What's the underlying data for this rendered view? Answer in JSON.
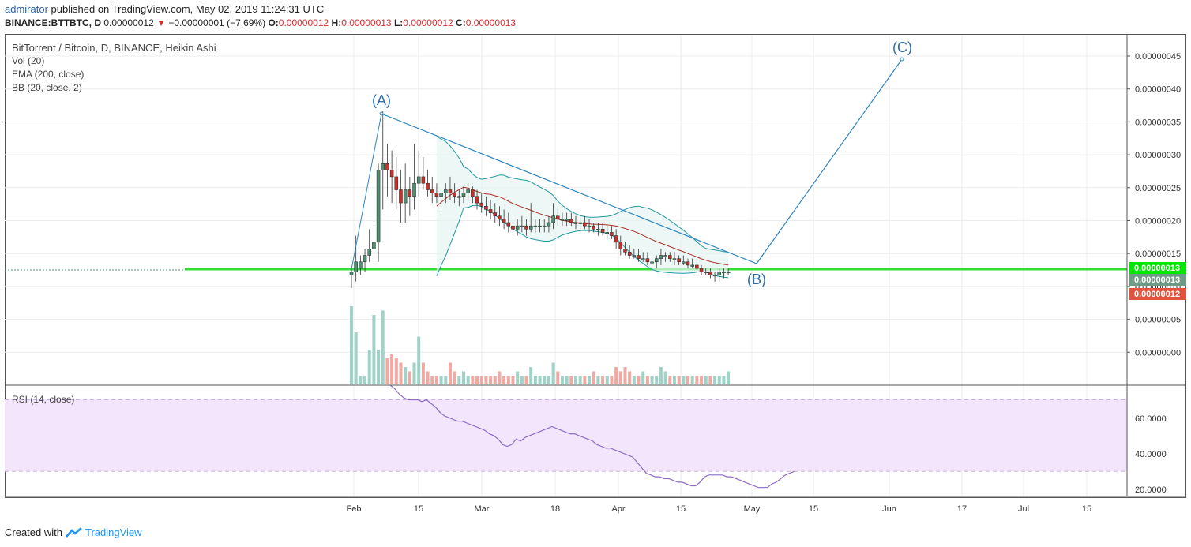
{
  "header": {
    "user": "admirator",
    "published": "published on TradingView.com, May 02, 2019 11:24:31 UTC",
    "symbol": "BINANCE:BTTBTC, D",
    "last": "0.00000012",
    "change": "−0.00000001 (−7.69%)",
    "o_label": "O:",
    "o": "0.00000012",
    "h_label": "H:",
    "h": "0.00000013",
    "l_label": "L:",
    "l": "0.00000012",
    "c_label": "C:",
    "c": "0.00000013"
  },
  "legend": {
    "title": "BitTorrent / Bitcoin, D, BINANCE, Heikin Ashi",
    "vol": "Vol (20)",
    "ema": "EMA (200, close)",
    "bb": "BB (20, close, 2)",
    "rsi": "RSI (14, close)"
  },
  "wave_labels": {
    "a": "(A)",
    "b": "(B)",
    "c": "(C)"
  },
  "price_tags": [
    {
      "text": "0.00000013",
      "color": "#00e600"
    },
    {
      "text": "0.00000013",
      "color": "#6f9a86"
    },
    {
      "text": "0.00000012",
      "color": "#e0533e"
    }
  ],
  "footer": {
    "created": "Created with",
    "brand": "TradingView"
  },
  "colors": {
    "up": "#4f8f72",
    "down": "#c9302c",
    "bb": "#1f9aa0",
    "ema": "#a93226",
    "wave": "#2e86c1",
    "support": "#33dd33",
    "rsi_line": "#8e6bc6",
    "rsi_band": "#f3e6fc"
  },
  "chart_data": {
    "type": "candlestick",
    "x_ticks": [
      "Feb",
      "15",
      "Mar",
      "18",
      "Apr",
      "15",
      "May",
      "15",
      "Jun",
      "17",
      "Jul",
      "15"
    ],
    "y_ticks": [
      "0.00000045",
      "0.00000040",
      "0.00000035",
      "0.00000030",
      "0.00000025",
      "0.00000020",
      "0.00000015",
      "0.00000010",
      "0.00000005",
      "0.00000000"
    ],
    "support_level": 1.25e-07,
    "ohlc": [
      [
        1.2e-07,
        1.3e-07,
        1e-07,
        1.25e-07,
        9.0
      ],
      [
        1.25e-07,
        1.8e-07,
        1.1e-07,
        1.4e-07,
        6.0
      ],
      [
        1.3e-07,
        1.5e-07,
        1.2e-07,
        1.4e-07,
        1.0
      ],
      [
        1.4e-07,
        1.6e-07,
        1.25e-07,
        1.5e-07,
        1.0
      ],
      [
        1.5e-07,
        1.9e-07,
        1.4e-07,
        1.6e-07,
        4.0
      ],
      [
        1.6e-07,
        2e-07,
        1.4e-07,
        1.7e-07,
        8.0
      ],
      [
        1.7e-07,
        2.9e-07,
        1.4e-07,
        2.8e-07,
        4.0
      ],
      [
        2.8e-07,
        3.7e-07,
        2.2e-07,
        2.9e-07,
        8.5
      ],
      [
        2.9e-07,
        3.2e-07,
        2.4e-07,
        2.8e-07,
        3.0
      ],
      [
        2.8e-07,
        3.1e-07,
        2.3e-07,
        2.7e-07,
        3.5
      ],
      [
        2.7e-07,
        3e-07,
        2.2e-07,
        2.5e-07,
        3.0
      ],
      [
        2.5e-07,
        2.8e-07,
        2e-07,
        2.3e-07,
        2.5
      ],
      [
        2.3e-07,
        2.9e-07,
        2e-07,
        2.5e-07,
        2.0
      ],
      [
        2.5e-07,
        2.7e-07,
        2.1e-07,
        2.4e-07,
        1.5
      ],
      [
        2.4e-07,
        3.2e-07,
        2.2e-07,
        2.6e-07,
        2.5
      ],
      [
        2.6e-07,
        3.1e-07,
        2.4e-07,
        2.7e-07,
        5.5
      ],
      [
        2.7e-07,
        3e-07,
        2.5e-07,
        2.6e-07,
        2.5
      ],
      [
        2.6e-07,
        2.8e-07,
        2.4e-07,
        2.5e-07,
        1.5
      ],
      [
        2.5e-07,
        2.7e-07,
        2.3e-07,
        2.45e-07,
        1.0
      ],
      [
        2.45e-07,
        2.6e-07,
        2.3e-07,
        2.4e-07,
        1.0
      ],
      [
        2.4e-07,
        2.5e-07,
        2.2e-07,
        2.45e-07,
        1.0
      ],
      [
        2.45e-07,
        2.6e-07,
        2.3e-07,
        2.5e-07,
        1.0
      ],
      [
        2.5e-07,
        2.7e-07,
        2.35e-07,
        2.45e-07,
        2.5
      ],
      [
        2.45e-07,
        2.6e-07,
        2.3e-07,
        2.4e-07,
        1.5
      ],
      [
        2.4e-07,
        2.5e-07,
        2.25e-07,
        2.4e-07,
        1.0
      ],
      [
        2.4e-07,
        2.55e-07,
        2.3e-07,
        2.45e-07,
        1.5
      ],
      [
        2.45e-07,
        2.6e-07,
        2.35e-07,
        2.5e-07,
        1.0
      ],
      [
        2.5e-07,
        2.55e-07,
        2.3e-07,
        2.4e-07,
        1.0
      ],
      [
        2.4e-07,
        2.5e-07,
        2.2e-07,
        2.3e-07,
        1.0
      ],
      [
        2.3e-07,
        2.45e-07,
        2.15e-07,
        2.25e-07,
        1.0
      ],
      [
        2.25e-07,
        2.4e-07,
        2.1e-07,
        2.2e-07,
        1.0
      ],
      [
        2.2e-07,
        2.35e-07,
        2.05e-07,
        2.15e-07,
        1.0
      ],
      [
        2.15e-07,
        2.3e-07,
        2e-07,
        2.1e-07,
        1.0
      ],
      [
        2.1e-07,
        2.25e-07,
        1.95e-07,
        2.05e-07,
        1.5
      ],
      [
        2.05e-07,
        2.2e-07,
        1.9e-07,
        2e-07,
        1.0
      ],
      [
        2e-07,
        2.15e-07,
        1.85e-07,
        1.95e-07,
        1.0
      ],
      [
        1.95e-07,
        2.1e-07,
        1.8e-07,
        1.9e-07,
        1.0
      ],
      [
        1.9e-07,
        2.05e-07,
        1.8e-07,
        1.95e-07,
        1.5
      ],
      [
        1.95e-07,
        2.1e-07,
        1.85e-07,
        1.95e-07,
        1.0
      ],
      [
        1.95e-07,
        2.05e-07,
        1.8e-07,
        1.9e-07,
        1.0
      ],
      [
        1.9e-07,
        2.3e-07,
        1.85e-07,
        1.95e-07,
        2.0
      ],
      [
        1.95e-07,
        2.05e-07,
        1.85e-07,
        1.95e-07,
        1.0
      ],
      [
        1.95e-07,
        2.05e-07,
        1.85e-07,
        1.95e-07,
        1.0
      ],
      [
        1.95e-07,
        2.05e-07,
        1.85e-07,
        1.95e-07,
        1.0
      ],
      [
        1.95e-07,
        2.1e-07,
        1.85e-07,
        2e-07,
        1.0
      ],
      [
        2e-07,
        2.3e-07,
        1.9e-07,
        2.1e-07,
        2.5
      ],
      [
        2.1e-07,
        2.2e-07,
        1.95e-07,
        2.05e-07,
        1.5
      ],
      [
        2.05e-07,
        2.15e-07,
        1.95e-07,
        2.05e-07,
        1.0
      ],
      [
        2.05e-07,
        2.15e-07,
        1.95e-07,
        2.05e-07,
        1.0
      ],
      [
        2.05e-07,
        2.15e-07,
        1.95e-07,
        2e-07,
        1.0
      ],
      [
        2e-07,
        2.1e-07,
        1.9e-07,
        2e-07,
        1.0
      ],
      [
        2e-07,
        2.1e-07,
        1.9e-07,
        2e-07,
        1.0
      ],
      [
        2e-07,
        2.1e-07,
        1.9e-07,
        1.95e-07,
        1.0
      ],
      [
        1.95e-07,
        2.05e-07,
        1.85e-07,
        1.95e-07,
        1.0
      ],
      [
        1.95e-07,
        2e-07,
        1.85e-07,
        1.9e-07,
        1.5
      ],
      [
        1.9e-07,
        2e-07,
        1.8e-07,
        1.9e-07,
        1.0
      ],
      [
        1.9e-07,
        2e-07,
        1.8e-07,
        1.85e-07,
        1.0
      ],
      [
        1.85e-07,
        1.95e-07,
        1.75e-07,
        1.85e-07,
        1.0
      ],
      [
        1.85e-07,
        1.95e-07,
        1.75e-07,
        1.8e-07,
        1.0
      ],
      [
        1.8e-07,
        1.9e-07,
        1.6e-07,
        1.7e-07,
        2.0
      ],
      [
        1.7e-07,
        1.8e-07,
        1.5e-07,
        1.6e-07,
        1.5
      ],
      [
        1.6e-07,
        1.7e-07,
        1.5e-07,
        1.55e-07,
        2.0
      ],
      [
        1.55e-07,
        1.65e-07,
        1.45e-07,
        1.5e-07,
        1.5
      ],
      [
        1.5e-07,
        1.6e-07,
        1.45e-07,
        1.5e-07,
        1.0
      ],
      [
        1.5e-07,
        1.6e-07,
        1.4e-07,
        1.45e-07,
        1.0
      ],
      [
        1.45e-07,
        1.55e-07,
        1.4e-07,
        1.45e-07,
        1.5
      ],
      [
        1.45e-07,
        1.55e-07,
        1.35e-07,
        1.4e-07,
        1.0
      ],
      [
        1.4e-07,
        1.5e-07,
        1.35e-07,
        1.4e-07,
        1.0
      ],
      [
        1.4e-07,
        1.5e-07,
        1.3e-07,
        1.45e-07,
        1.0
      ],
      [
        1.45e-07,
        1.6e-07,
        1.35e-07,
        1.5e-07,
        2.0
      ],
      [
        1.5e-07,
        1.55e-07,
        1.4e-07,
        1.5e-07,
        1.5
      ],
      [
        1.5e-07,
        1.55e-07,
        1.4e-07,
        1.45e-07,
        1.0
      ],
      [
        1.45e-07,
        1.55e-07,
        1.35e-07,
        1.45e-07,
        1.0
      ],
      [
        1.45e-07,
        1.5e-07,
        1.35e-07,
        1.4e-07,
        1.0
      ],
      [
        1.4e-07,
        1.5e-07,
        1.35e-07,
        1.4e-07,
        1.0
      ],
      [
        1.4e-07,
        1.45e-07,
        1.3e-07,
        1.35e-07,
        1.0
      ],
      [
        1.35e-07,
        1.45e-07,
        1.3e-07,
        1.35e-07,
        1.0
      ],
      [
        1.35e-07,
        1.4e-07,
        1.25e-07,
        1.3e-07,
        1.0
      ],
      [
        1.3e-07,
        1.35e-07,
        1.2e-07,
        1.25e-07,
        1.0
      ],
      [
        1.25e-07,
        1.3e-07,
        1.2e-07,
        1.25e-07,
        1.0
      ],
      [
        1.25e-07,
        1.3e-07,
        1.15e-07,
        1.2e-07,
        1.0
      ],
      [
        1.2e-07,
        1.25e-07,
        1.1e-07,
        1.2e-07,
        1.0
      ],
      [
        1.2e-07,
        1.3e-07,
        1.1e-07,
        1.25e-07,
        1.0
      ],
      [
        1.25e-07,
        1.3e-07,
        1.15e-07,
        1.25e-07,
        1.0
      ],
      [
        1.25e-07,
        1.3e-07,
        1.2e-07,
        1.25e-07,
        1.5
      ]
    ],
    "rsi": [
      78,
      76,
      73,
      71,
      70,
      70,
      70,
      69,
      70,
      68,
      66,
      63,
      61,
      60,
      59,
      58,
      58,
      57,
      56,
      55,
      54,
      53,
      51,
      50,
      48,
      45,
      44,
      45,
      48,
      47,
      49,
      50,
      51,
      52,
      53,
      54,
      55,
      54,
      53,
      52,
      51,
      51,
      50,
      49,
      48,
      47,
      45,
      44,
      43,
      43,
      42,
      41,
      40,
      39,
      38,
      35,
      32,
      29,
      28,
      27,
      27,
      26,
      26,
      25,
      24,
      24,
      23,
      22,
      22,
      24,
      27,
      28,
      28,
      28,
      28,
      27,
      27,
      26,
      25,
      24,
      23,
      22,
      21,
      21,
      21,
      23,
      24,
      26,
      28,
      29,
      30
    ],
    "rsi_ticks": [
      "60.0000",
      "40.0000",
      "20.0000"
    ],
    "rsi_levels": [
      70,
      30
    ]
  }
}
